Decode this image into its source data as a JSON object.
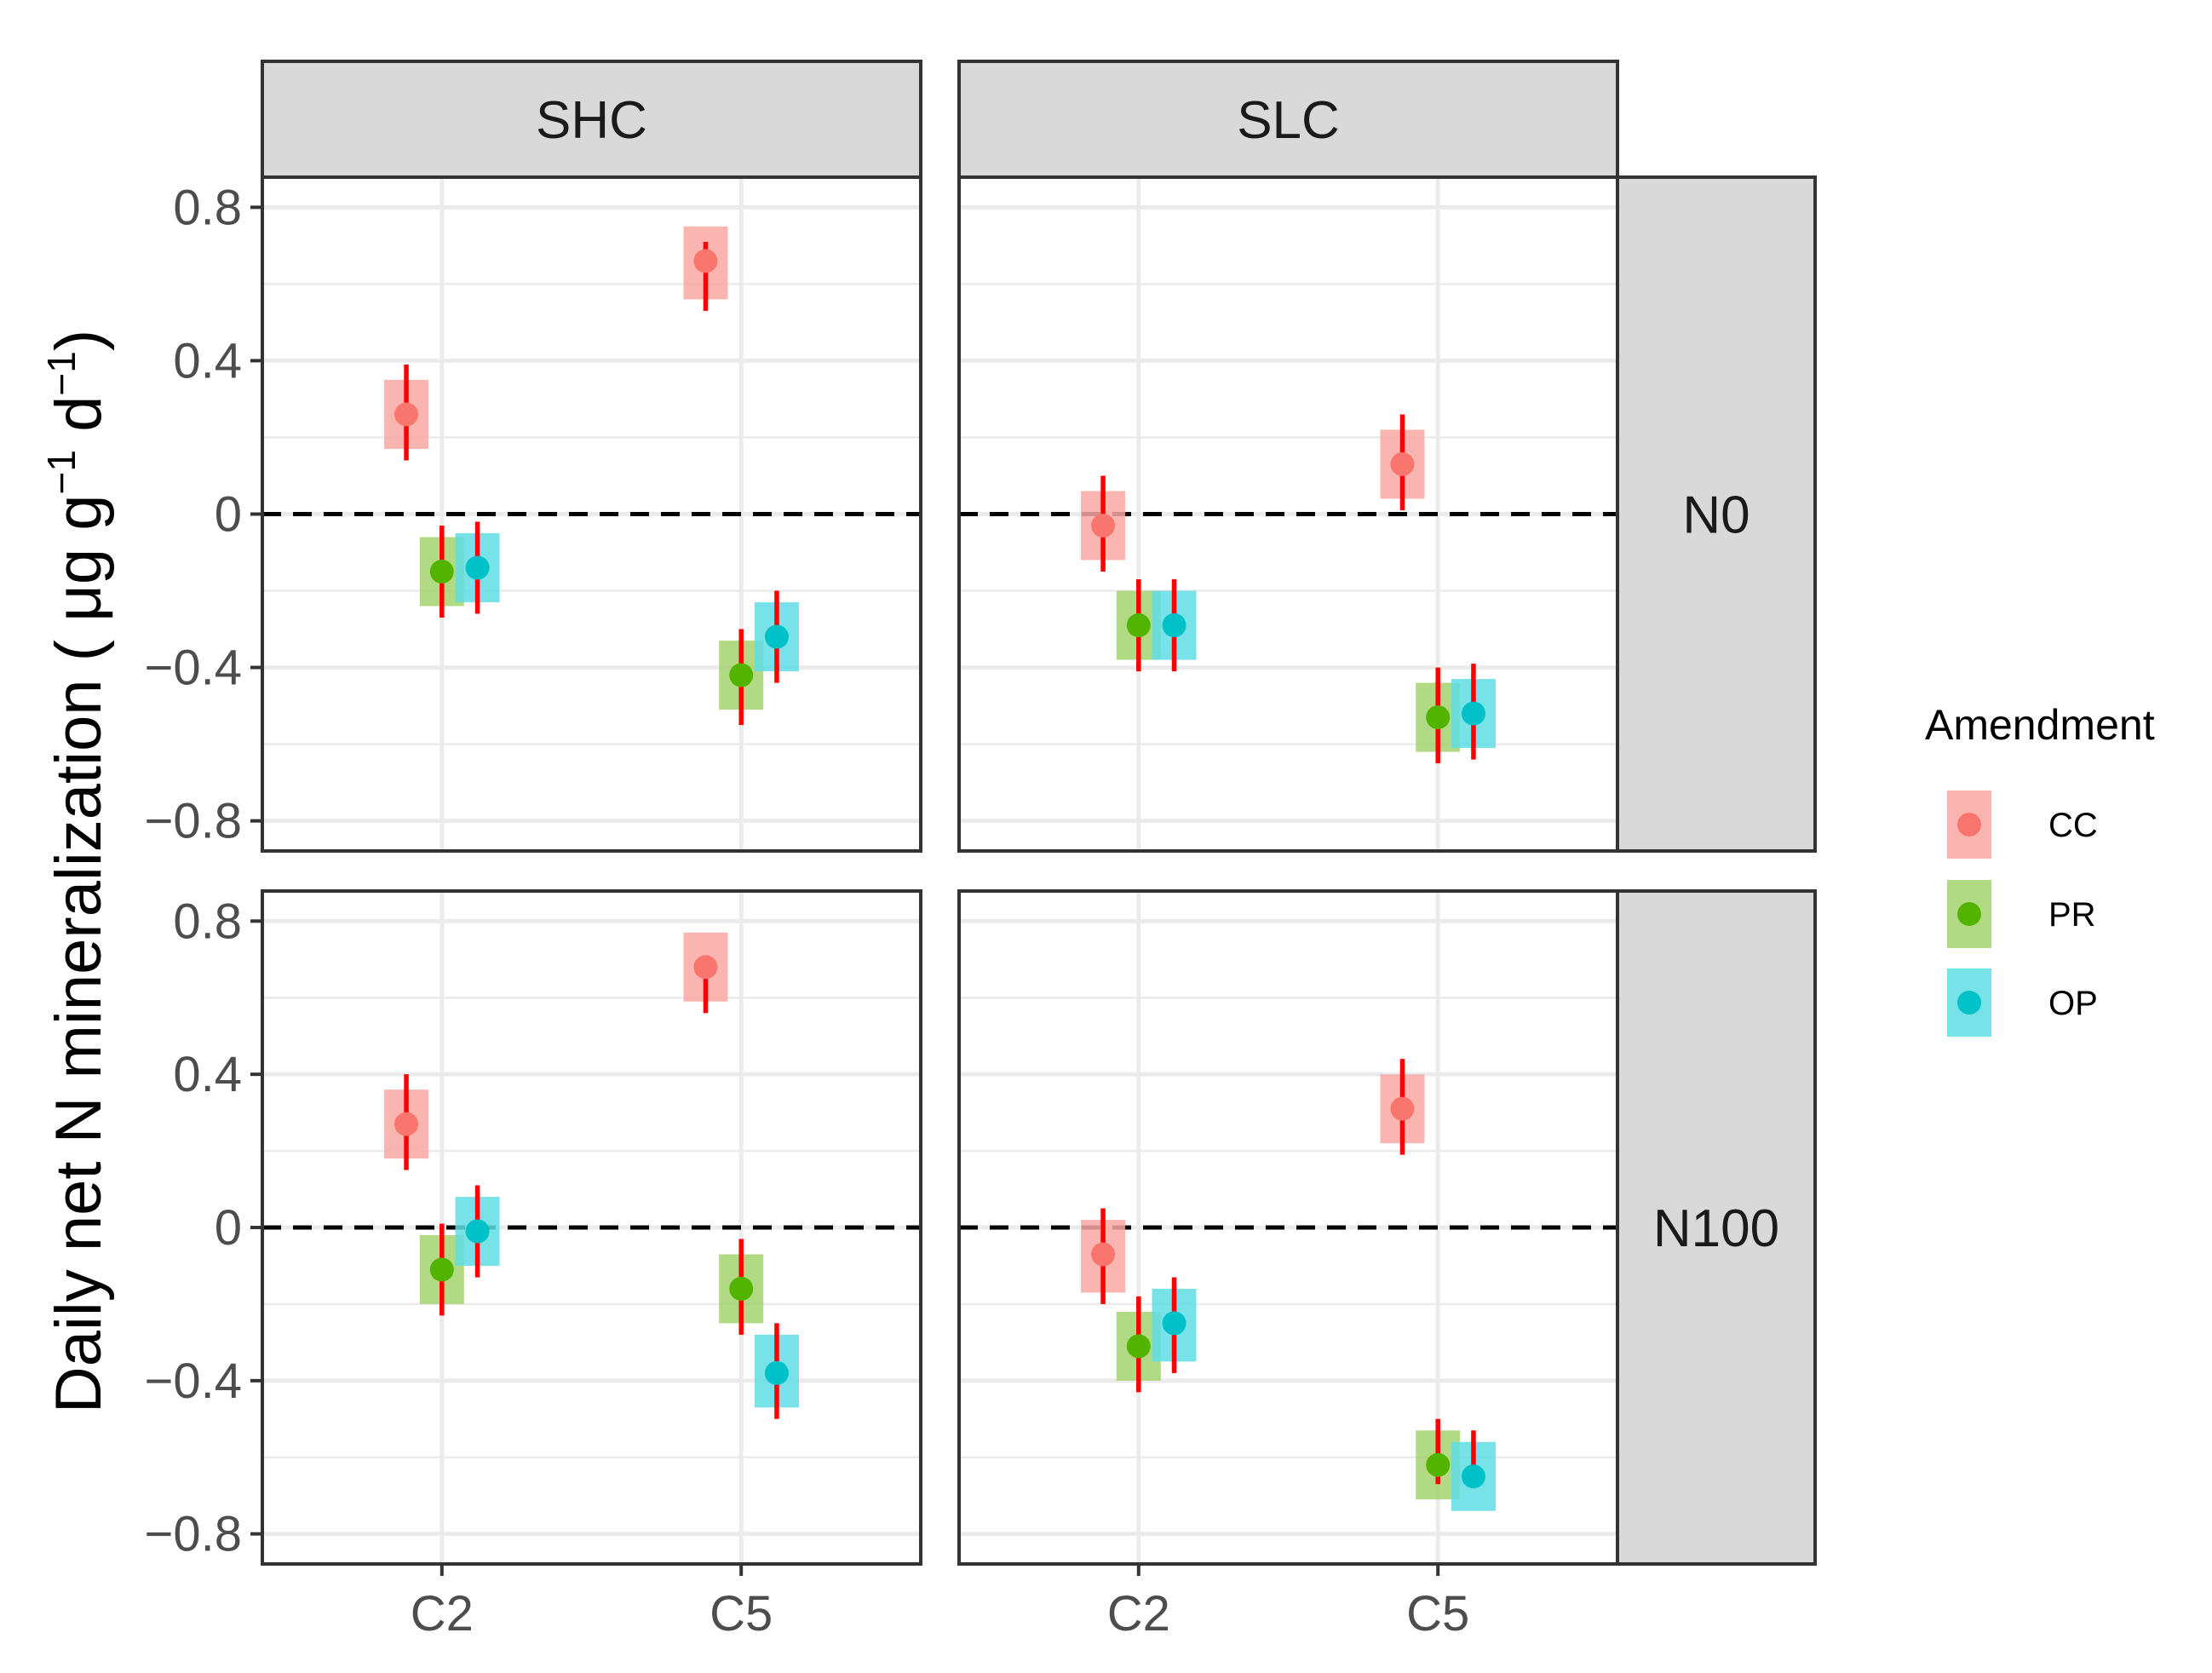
{
  "chart_data": {
    "type": "scatter",
    "title": "",
    "xlabel": "",
    "ylabel": {
      "prefix": "Daily net N mineralization ( μg  g",
      "sup1": "−1",
      "mid": " d",
      "sup2": "−1",
      "suffix": ")"
    },
    "ylim": [
      -0.8,
      0.8
    ],
    "yticks": [
      {
        "value": 0.8,
        "label": "0.8"
      },
      {
        "value": 0.4,
        "label": "0.4"
      },
      {
        "value": 0,
        "label": "0"
      },
      {
        "value": -0.4,
        "label": "−0.4"
      },
      {
        "value": -0.8,
        "label": "−0.8"
      }
    ],
    "x_categories": [
      "C2",
      "C5"
    ],
    "col_facets": [
      "SHC",
      "SLC"
    ],
    "row_facets": [
      "N0",
      "N100"
    ],
    "grid": true,
    "reference_line": {
      "y": 0,
      "style": "dashed"
    },
    "legend": {
      "title": "Amendment",
      "position": "right",
      "items": [
        {
          "name": "CC",
          "point_color": "#f8766d",
          "fill_color": "#f9a8a2"
        },
        {
          "name": "PR",
          "point_color": "#53b400",
          "fill_color": "#a4d46e"
        },
        {
          "name": "OP",
          "point_color": "#00c0c8",
          "fill_color": "#5fdde4"
        }
      ]
    },
    "series_offsets": {
      "CC": -0.27,
      "PR": 0,
      "OP": 0.27
    },
    "errorbar_color": "#ff0000",
    "panels": [
      {
        "row": "N0",
        "col": "SHC",
        "points": [
          {
            "x": "C2",
            "series": "CC",
            "y": 0.26,
            "lo": 0.14,
            "hi": 0.39,
            "box_lo": 0.17,
            "box_hi": 0.35
          },
          {
            "x": "C2",
            "series": "PR",
            "y": -0.15,
            "lo": -0.27,
            "hi": -0.03,
            "box_lo": -0.24,
            "box_hi": -0.06
          },
          {
            "x": "C2",
            "series": "OP",
            "y": -0.14,
            "lo": -0.26,
            "hi": -0.02,
            "box_lo": -0.23,
            "box_hi": -0.05
          },
          {
            "x": "C5",
            "series": "CC",
            "y": 0.66,
            "lo": 0.53,
            "hi": 0.71,
            "box_lo": 0.56,
            "box_hi": 0.75
          },
          {
            "x": "C5",
            "series": "PR",
            "y": -0.42,
            "lo": -0.55,
            "hi": -0.3,
            "box_lo": -0.51,
            "box_hi": -0.33
          },
          {
            "x": "C5",
            "series": "OP",
            "y": -0.32,
            "lo": -0.44,
            "hi": -0.2,
            "box_lo": -0.41,
            "box_hi": -0.23
          }
        ]
      },
      {
        "row": "N0",
        "col": "SLC",
        "points": [
          {
            "x": "C2",
            "series": "CC",
            "y": -0.03,
            "lo": -0.15,
            "hi": 0.1,
            "box_lo": -0.12,
            "box_hi": 0.06
          },
          {
            "x": "C2",
            "series": "PR",
            "y": -0.29,
            "lo": -0.41,
            "hi": -0.17,
            "box_lo": -0.38,
            "box_hi": -0.2
          },
          {
            "x": "C2",
            "series": "OP",
            "y": -0.29,
            "lo": -0.41,
            "hi": -0.17,
            "box_lo": -0.38,
            "box_hi": -0.2
          },
          {
            "x": "C5",
            "series": "CC",
            "y": 0.13,
            "lo": 0.01,
            "hi": 0.26,
            "box_lo": 0.04,
            "box_hi": 0.22
          },
          {
            "x": "C5",
            "series": "PR",
            "y": -0.53,
            "lo": -0.65,
            "hi": -0.4,
            "box_lo": -0.62,
            "box_hi": -0.44
          },
          {
            "x": "C5",
            "series": "OP",
            "y": -0.52,
            "lo": -0.64,
            "hi": -0.39,
            "box_lo": -0.61,
            "box_hi": -0.43
          }
        ]
      },
      {
        "row": "N100",
        "col": "SHC",
        "points": [
          {
            "x": "C2",
            "series": "CC",
            "y": 0.27,
            "lo": 0.15,
            "hi": 0.4,
            "box_lo": 0.18,
            "box_hi": 0.36
          },
          {
            "x": "C2",
            "series": "PR",
            "y": -0.11,
            "lo": -0.23,
            "hi": 0.01,
            "box_lo": -0.2,
            "box_hi": -0.02
          },
          {
            "x": "C2",
            "series": "OP",
            "y": -0.01,
            "lo": -0.13,
            "hi": 0.11,
            "box_lo": -0.1,
            "box_hi": 0.08
          },
          {
            "x": "C5",
            "series": "CC",
            "y": 0.68,
            "lo": 0.56,
            "hi": 0.71,
            "box_lo": 0.59,
            "box_hi": 0.77
          },
          {
            "x": "C5",
            "series": "PR",
            "y": -0.16,
            "lo": -0.28,
            "hi": -0.03,
            "box_lo": -0.25,
            "box_hi": -0.07
          },
          {
            "x": "C5",
            "series": "OP",
            "y": -0.38,
            "lo": -0.5,
            "hi": -0.25,
            "box_lo": -0.47,
            "box_hi": -0.28
          }
        ]
      },
      {
        "row": "N100",
        "col": "SLC",
        "points": [
          {
            "x": "C2",
            "series": "CC",
            "y": -0.07,
            "lo": -0.2,
            "hi": 0.05,
            "box_lo": -0.17,
            "box_hi": 0.02
          },
          {
            "x": "C2",
            "series": "PR",
            "y": -0.31,
            "lo": -0.43,
            "hi": -0.18,
            "box_lo": -0.4,
            "box_hi": -0.22
          },
          {
            "x": "C2",
            "series": "OP",
            "y": -0.25,
            "lo": -0.38,
            "hi": -0.13,
            "box_lo": -0.35,
            "box_hi": -0.16
          },
          {
            "x": "C5",
            "series": "CC",
            "y": 0.31,
            "lo": 0.19,
            "hi": 0.44,
            "box_lo": 0.22,
            "box_hi": 0.4
          },
          {
            "x": "C5",
            "series": "PR",
            "y": -0.62,
            "lo": -0.67,
            "hi": -0.5,
            "box_lo": -0.71,
            "box_hi": -0.53
          },
          {
            "x": "C5",
            "series": "OP",
            "y": -0.65,
            "lo": -0.67,
            "hi": -0.53,
            "box_lo": -0.74,
            "box_hi": -0.56
          }
        ]
      }
    ]
  }
}
